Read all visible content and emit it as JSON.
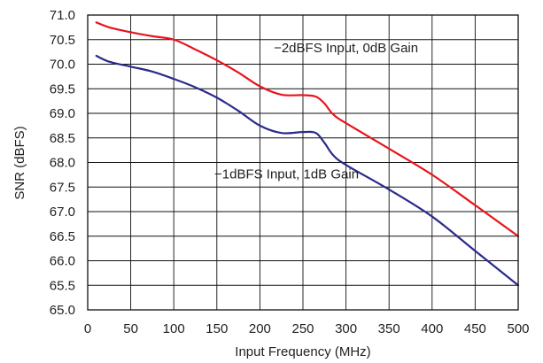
{
  "chart_data": {
    "type": "line",
    "title": "",
    "xlabel": "Input Frequency (MHz)",
    "ylabel": "SNR (dBFS)",
    "xlim": [
      0,
      500
    ],
    "ylim": [
      65.0,
      71.0
    ],
    "x_ticks": [
      "0",
      "50",
      "100",
      "150",
      "200",
      "250",
      "300",
      "350",
      "400",
      "450",
      "500"
    ],
    "y_ticks": [
      "65.0",
      "65.5",
      "66.0",
      "66.5",
      "67.0",
      "67.5",
      "68.0",
      "68.5",
      "69.0",
      "69.5",
      "70.0",
      "70.5",
      "71.0"
    ],
    "grid": true,
    "colors": {
      "red": "#e8141c",
      "blue": "#2a2a8c",
      "grid": "#111111"
    },
    "series": [
      {
        "color": "red",
        "x": [
          10,
          25,
          50,
          75,
          100,
          125,
          150,
          175,
          200,
          225,
          250,
          265,
          275,
          285,
          300,
          350,
          400,
          450,
          500
        ],
        "y": [
          70.85,
          70.75,
          70.65,
          70.57,
          70.5,
          70.3,
          70.08,
          69.83,
          69.55,
          69.38,
          69.37,
          69.34,
          69.2,
          68.98,
          68.8,
          68.28,
          67.75,
          67.13,
          66.5
        ]
      },
      {
        "color": "blue",
        "x": [
          10,
          25,
          50,
          75,
          100,
          125,
          150,
          175,
          200,
          225,
          250,
          265,
          275,
          285,
          300,
          350,
          400,
          450,
          500
        ],
        "y": [
          70.17,
          70.05,
          69.95,
          69.85,
          69.7,
          69.53,
          69.32,
          69.05,
          68.75,
          68.6,
          68.62,
          68.6,
          68.4,
          68.15,
          67.95,
          67.45,
          66.9,
          66.2,
          65.5
        ]
      }
    ],
    "annotations": [
      {
        "text": "−2dBFS Input, 0dB Gain",
        "x": 300,
        "y": 70.33
      },
      {
        "text": "−1dBFS Input, 1dB Gain",
        "x": 231,
        "y": 67.77
      }
    ]
  }
}
